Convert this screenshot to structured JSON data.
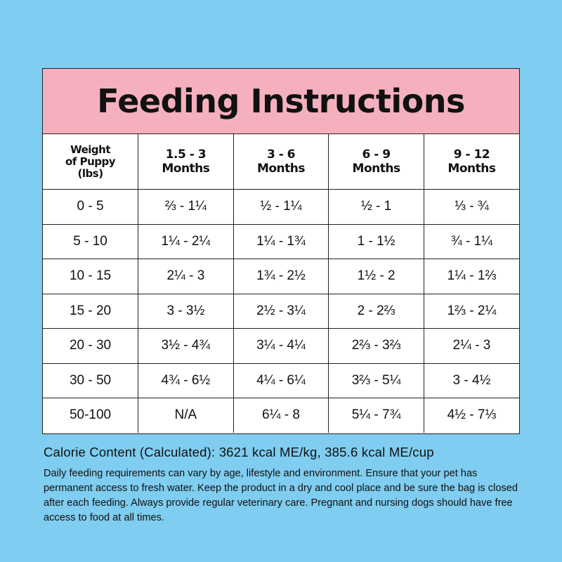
{
  "title": "Feeding Instructions",
  "headers": [
    "Weight of Puppy (lbs)",
    "1.5 - 3 Months",
    "3 - 6 Months",
    "6 - 9 Months",
    "9 - 12 Months"
  ],
  "rows": [
    [
      "0 - 5",
      "⅔ - 1¼",
      "½ - 1¼",
      "½ - 1",
      "⅓ - ¾"
    ],
    [
      "5 - 10",
      "1¼ - 2¼",
      "1¼ - 1¾",
      "1 - 1½",
      "¾ - 1¼"
    ],
    [
      "10 - 15",
      "2¼ - 3",
      "1¾ - 2½",
      "1½ - 2",
      "1¼ - 1⅔"
    ],
    [
      "15 - 20",
      "3 - 3½",
      "2½ - 3¼",
      "2 - 2⅔",
      "1⅔ - 2¼"
    ],
    [
      "20 - 30",
      "3½ - 4¾",
      "3¼ - 4¼",
      "2⅔ - 3⅔",
      "2¼ - 3"
    ],
    [
      "30 - 50",
      "4¾ - 6½",
      "4¼ - 6¼",
      "3⅔ - 5¼",
      "3 - 4½"
    ],
    [
      "50-100",
      "N/A",
      "6¼ - 8",
      "5¼ - 7¾",
      "4½ - 7⅓"
    ]
  ],
  "calorie_content": "Calorie Content (Calculated): 3621 kcal ME/kg, 385.6 kcal ME/cup",
  "note": "Daily feeding requirements can vary by age, lifestyle and environment. Ensure that your pet has permanent access to fresh water. Keep the product in a dry and cool place and be sure the bag is closed after each feeding. Always provide regular veterinary care. Pregnant and nursing dogs should have free access to food at all times.",
  "colors": {
    "background": "#7fcdf0",
    "title_band": "#f5b0be"
  }
}
